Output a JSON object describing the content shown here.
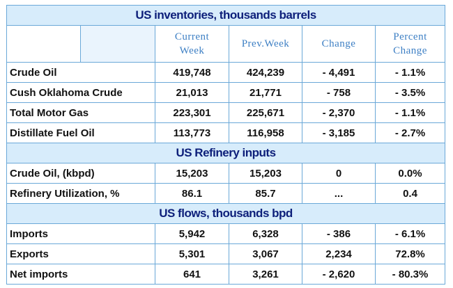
{
  "sections": [
    {
      "title": "US inventories, thousands barrels",
      "rows": [
        {
          "label": "Crude Oil",
          "current": "419,748",
          "prev": "424,239",
          "change": "- 4,491",
          "pct": "- 1.1%"
        },
        {
          "label": "Cush Oklahoma Crude",
          "current": "21,013",
          "prev": "21,771",
          "change": "- 758",
          "pct": "- 3.5%"
        },
        {
          "label": "Total Motor Gas",
          "current": "223,301",
          "prev": "225,671",
          "change": "- 2,370",
          "pct": "- 1.1%"
        },
        {
          "label": "Distillate Fuel Oil",
          "current": "113,773",
          "prev": "116,958",
          "change": "- 3,185",
          "pct": "- 2.7%"
        }
      ]
    },
    {
      "title": "US Refinery inputs",
      "rows": [
        {
          "label": "Crude Oil, (kbpd)",
          "current": "15,203",
          "prev": "15,203",
          "change": "0",
          "pct": "0.0%"
        },
        {
          "label": "Refinery Utilization, %",
          "current": "86.1",
          "prev": "85.7",
          "change": "...",
          "pct": "0.4"
        }
      ]
    },
    {
      "title": "US flows, thousands bpd",
      "rows": [
        {
          "label": "Imports",
          "current": "5,942",
          "prev": "6,328",
          "change": "- 386",
          "pct": "- 6.1%"
        },
        {
          "label": "Exports",
          "current": "5,301",
          "prev": "3,067",
          "change": "2,234",
          "pct": "72.8%"
        },
        {
          "label": "Net imports",
          "current": "641",
          "prev": "3,261",
          "change": "- 2,620",
          "pct": "- 80.3%"
        }
      ]
    }
  ],
  "headers": {
    "current_line1": "Current",
    "current_line2": "Week",
    "prev": "Prev.Week",
    "change": "Change",
    "pct_line1": "Percent",
    "pct_line2": "Change"
  },
  "colors": {
    "border": "#6aa8d8",
    "section_bg": "#d7ecfb",
    "section_text": "#0d1f7a",
    "header_text": "#3d7fc4"
  }
}
